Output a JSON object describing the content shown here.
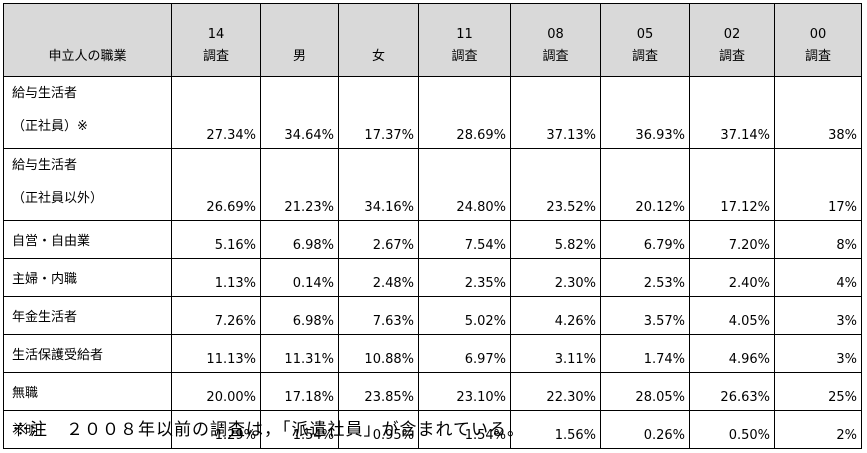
{
  "header": {
    "occupation_label": "申立人の職業",
    "columns": [
      {
        "top": "14",
        "bottom": "調査"
      },
      {
        "top": "",
        "bottom": "男"
      },
      {
        "top": "",
        "bottom": "女"
      },
      {
        "top": "11",
        "bottom": "調査"
      },
      {
        "top": "08",
        "bottom": "調査"
      },
      {
        "top": "05",
        "bottom": "調査"
      },
      {
        "top": "02",
        "bottom": "調査"
      },
      {
        "top": "00",
        "bottom": "調査"
      }
    ]
  },
  "rows": [
    {
      "label1": "給与生活者",
      "label2": "（正社員）※",
      "values": [
        "27.34%",
        "34.64%",
        "17.37%",
        "28.69%",
        "37.13%",
        "36.93%",
        "37.14%",
        "38%"
      ]
    },
    {
      "label1": "給与生活者",
      "label2": "（正社員以外）",
      "values": [
        "26.69%",
        "21.23%",
        "34.16%",
        "24.80%",
        "23.52%",
        "20.12%",
        "17.12%",
        "17%"
      ]
    },
    {
      "label1": "自営・自由業",
      "values": [
        "5.16%",
        "6.98%",
        "2.67%",
        "7.54%",
        "5.82%",
        "6.79%",
        "7.20%",
        "8%"
      ]
    },
    {
      "label1": "主婦・内職",
      "values": [
        "1.13%",
        "0.14%",
        "2.48%",
        "2.35%",
        "2.30%",
        "2.53%",
        "2.40%",
        "4%"
      ]
    },
    {
      "label1": "年金生活者",
      "values": [
        "7.26%",
        "6.98%",
        "7.63%",
        "5.02%",
        "4.26%",
        "3.57%",
        "4.05%",
        "3%"
      ]
    },
    {
      "label1": "生活保護受給者",
      "values": [
        "11.13%",
        "11.31%",
        "10.88%",
        "6.97%",
        "3.11%",
        "1.74%",
        "4.96%",
        "3%"
      ]
    },
    {
      "label1": "無職",
      "values": [
        "20.00%",
        "17.18%",
        "23.85%",
        "23.10%",
        "22.30%",
        "28.05%",
        "26.63%",
        "25%"
      ]
    },
    {
      "label1": "不明",
      "values": [
        "1.29%",
        "1.54%",
        "0.95%",
        "1.54%",
        "1.56%",
        "0.26%",
        "0.50%",
        "2%"
      ]
    }
  ],
  "note": "※注　２００８年以前の調査は，「派遣社員」が含まれている。"
}
